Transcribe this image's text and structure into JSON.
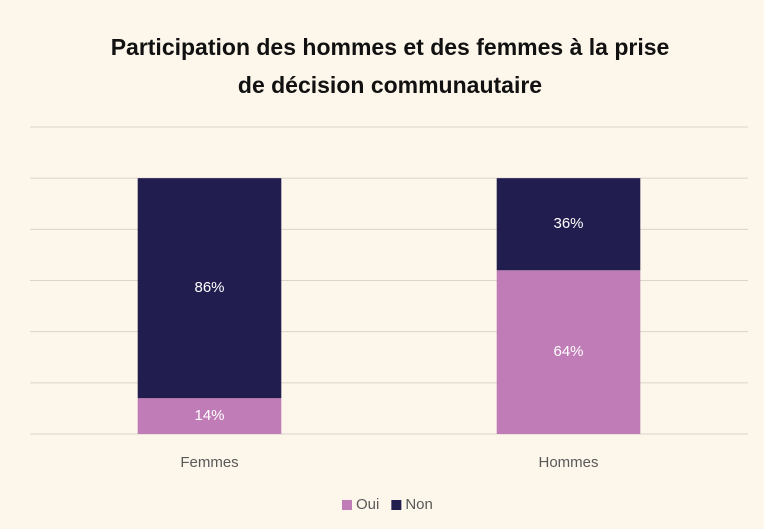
{
  "chart_data": {
    "type": "stacked_bar",
    "title": "Participation des hommes et des femmes à la prise de décision communautaire",
    "categories": [
      "Femmes",
      "Hommes"
    ],
    "series": [
      {
        "name": "Oui",
        "color": "#c07cb7",
        "values": [
          14,
          64
        ],
        "value_labels": [
          "14%",
          "64%"
        ]
      },
      {
        "name": "Non",
        "color": "#221d4f",
        "values": [
          86,
          36
        ],
        "value_labels": [
          "86%",
          "36%"
        ]
      }
    ],
    "ylim": [
      0,
      120
    ],
    "yticks": [
      0,
      20,
      40,
      60,
      80,
      100,
      120
    ],
    "grid": true,
    "legend": "bottom"
  }
}
